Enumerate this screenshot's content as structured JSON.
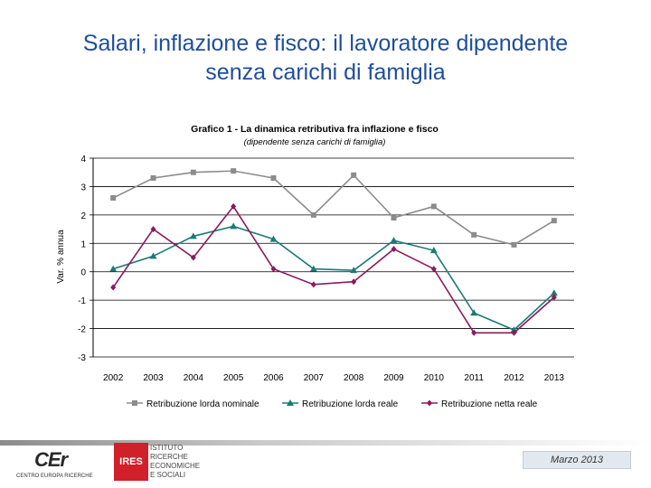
{
  "slide": {
    "title_line1": "Salari, inflazione e fisco: il lavoratore dipendente",
    "title_line2": "senza carichi di famiglia",
    "date": "Marzo 2013"
  },
  "logos": {
    "cer_mark": "CEr",
    "cer_text": "CENTRO EUROPA RICERCHE",
    "ires_mark": "IRES",
    "ires_text": "ISTITUTO\nRICERCHE\nECONOMICHE\nE SOCIALI"
  },
  "chart_data": {
    "type": "line",
    "title": "Grafico 1 - La dinamica retributiva fra inflazione e fisco",
    "subtitle": "(dipendente senza carichi di famiglia)",
    "ylabel": "Var. % annua",
    "xlabel": "",
    "ylim": [
      -3,
      4
    ],
    "yticks": [
      -3,
      -2,
      -1,
      0,
      1,
      2,
      3,
      4
    ],
    "grid": true,
    "legend": "bottom",
    "categories": [
      "2002",
      "2003",
      "2004",
      "2005",
      "2006",
      "2007",
      "2008",
      "2009",
      "2010",
      "2011",
      "2012",
      "2013"
    ],
    "series": [
      {
        "name": "Retribuzione lorda nominale",
        "color": "#8c8c8c",
        "marker": "square",
        "values": [
          2.6,
          3.3,
          3.5,
          3.55,
          3.3,
          2.0,
          3.4,
          1.9,
          2.3,
          1.3,
          0.95,
          1.8
        ]
      },
      {
        "name": "Retribuzione lorda reale",
        "color": "#1c7a78",
        "marker": "triangle",
        "values": [
          0.1,
          0.55,
          1.25,
          1.6,
          1.15,
          0.1,
          0.05,
          1.1,
          0.75,
          -1.45,
          -2.05,
          -0.75
        ]
      },
      {
        "name": "Retribuzione netta reale",
        "color": "#8b1a5c",
        "marker": "diamond",
        "values": [
          -0.55,
          1.5,
          0.5,
          2.3,
          0.1,
          -0.45,
          -0.35,
          0.8,
          0.1,
          -2.15,
          -2.15,
          -0.9
        ]
      }
    ]
  }
}
